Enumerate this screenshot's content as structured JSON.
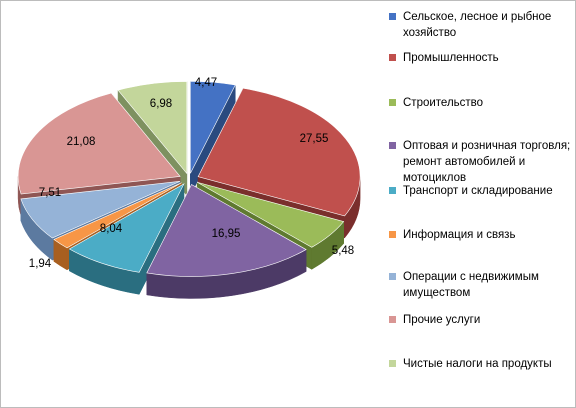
{
  "chart_data": {
    "type": "pie",
    "categories": [
      "Сельское, лесное и рыбное хозяйство",
      "Промышленность",
      "Строительство",
      "Оптовая и розничная торговля; ремонт автомобилей и мотоциклов",
      "Транспорт и складирование",
      "Информация и связь",
      "Операции с недвижимым имуществом",
      "Прочие услуги",
      "Чистые налоги на продукты"
    ],
    "values": [
      4.47,
      27.55,
      5.48,
      16.95,
      8.04,
      1.94,
      7.51,
      21.08,
      6.98
    ],
    "data_labels": [
      "4,47",
      "27,55",
      "5,48",
      "16,95",
      "8,04",
      "1,94",
      "7,51",
      "21,08",
      "6,98"
    ],
    "colors": [
      "#4472c4",
      "#c0504d",
      "#9bbb59",
      "#8064a2",
      "#4bacc6",
      "#f79646",
      "#95b3d7",
      "#d99694",
      "#c3d69b"
    ],
    "dark_colors": [
      "#2a4a7f",
      "#7a2e2c",
      "#5f7a30",
      "#4c3a66",
      "#2a6e80",
      "#a85f20",
      "#5c7aa0",
      "#8f5654",
      "#7e9160"
    ],
    "legend_position": "right",
    "style": "3d-exploded"
  },
  "legend": {
    "items": [
      "Сельское, лесное и рыбное хозяйство",
      "Промышленность",
      "Строительство",
      "Оптовая и розничная торговля; ремонт автомобилей и мотоциклов",
      "Транспорт и складирование",
      "Информация и связь",
      "Операции с недвижимым имуществом",
      "Прочие услуги",
      "Чистые налоги на продукты"
    ]
  }
}
